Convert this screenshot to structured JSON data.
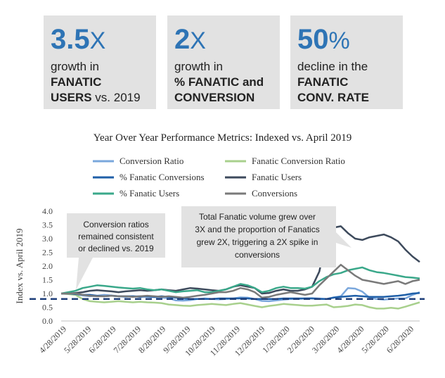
{
  "stats": [
    {
      "number": "3.5",
      "unit": "X",
      "line1": "growth in",
      "line2": "FANATIC",
      "line3a": "USERS",
      "line3b": " vs. 2019"
    },
    {
      "number": "2",
      "unit": "X",
      "line1": "growth in",
      "line2": "% FANATIC and",
      "line3a": "CONVERSION",
      "line3b": ""
    },
    {
      "number": "50",
      "unit": "%",
      "line1": "decline in the",
      "line2": "FANATIC",
      "line3a": "CONV. RATE",
      "line3b": ""
    }
  ],
  "chart_data": {
    "type": "line",
    "title": "Year Over Year Performance Metrics: Indexed vs. April 2019",
    "ylabel": "Index vs. April 2019",
    "xlabel": "",
    "ylim": [
      0,
      4
    ],
    "yticks": [
      "0.0",
      "0.5",
      "1.0",
      "1.5",
      "2.0",
      "2.5",
      "3.0",
      "3.5",
      "4.0"
    ],
    "xtick_labels": [
      "4/28/2019",
      "5/28/2019",
      "6/28/2019",
      "7/28/2019",
      "8/28/2019",
      "9/28/2019",
      "10/28/2019",
      "11/28/2019",
      "12/28/2019",
      "1/28/2020",
      "2/28/2020",
      "3/28/2020",
      "4/28/2020",
      "5/28/2020",
      "6/28/2020"
    ],
    "reference_line": 0.8,
    "series": [
      {
        "name": "Conversion Ratio",
        "color": "#7aa7dc",
        "values": [
          1.0,
          1.0,
          0.97,
          0.93,
          0.9,
          0.92,
          0.95,
          0.93,
          0.9,
          0.88,
          0.9,
          0.9,
          0.88,
          0.87,
          0.85,
          0.83,
          0.75,
          0.74,
          0.76,
          0.8,
          0.82,
          0.8,
          0.79,
          0.8,
          0.82,
          0.86,
          0.85,
          0.8,
          0.73,
          0.72,
          0.75,
          0.78,
          0.8,
          0.8,
          0.82,
          0.83,
          0.82,
          0.8,
          0.86,
          0.9,
          1.2,
          1.18,
          1.07,
          0.85,
          0.8,
          0.78,
          0.8,
          0.82,
          0.82,
          0.95,
          1.05
        ]
      },
      {
        "name": "Fanatic Conversion Ratio",
        "color": "#a8d08d",
        "values": [
          1.0,
          0.98,
          0.95,
          0.8,
          0.72,
          0.7,
          0.68,
          0.7,
          0.72,
          0.7,
          0.68,
          0.7,
          0.68,
          0.67,
          0.65,
          0.6,
          0.58,
          0.56,
          0.55,
          0.58,
          0.6,
          0.62,
          0.6,
          0.58,
          0.62,
          0.65,
          0.6,
          0.55,
          0.5,
          0.55,
          0.58,
          0.62,
          0.6,
          0.58,
          0.56,
          0.56,
          0.58,
          0.6,
          0.5,
          0.52,
          0.55,
          0.6,
          0.58,
          0.5,
          0.45,
          0.45,
          0.48,
          0.45,
          0.52,
          0.6,
          0.68
        ]
      },
      {
        "name": "% Fanatic Conversions",
        "color": "#1f5fa8",
        "values": [
          1.0,
          1.0,
          0.98,
          0.95,
          0.95,
          0.92,
          0.9,
          0.92,
          0.9,
          0.9,
          0.9,
          0.88,
          0.9,
          0.88,
          0.9,
          0.88,
          0.85,
          0.82,
          0.8,
          0.8,
          0.8,
          0.8,
          0.82,
          0.82,
          0.82,
          0.82,
          0.82,
          0.8,
          0.8,
          0.8,
          0.8,
          0.82,
          0.82,
          0.82,
          0.82,
          0.82,
          0.8,
          0.8,
          0.85,
          0.88,
          0.9,
          0.92,
          0.9,
          0.88,
          0.88,
          0.88,
          0.9,
          0.92,
          0.95,
          1.0,
          1.02
        ]
      },
      {
        "name": "Fanatic Users",
        "color": "#3d4a5c",
        "values": [
          1.0,
          1.0,
          1.02,
          1.05,
          1.1,
          1.12,
          1.1,
          1.08,
          1.05,
          1.08,
          1.1,
          1.12,
          1.1,
          1.12,
          1.15,
          1.12,
          1.1,
          1.15,
          1.2,
          1.18,
          1.15,
          1.12,
          1.1,
          1.15,
          1.25,
          1.3,
          1.25,
          1.2,
          1.0,
          1.02,
          1.1,
          1.15,
          1.1,
          1.1,
          1.15,
          1.25,
          1.8,
          3.0,
          3.4,
          3.45,
          3.2,
          3.0,
          2.95,
          3.05,
          3.1,
          3.15,
          3.05,
          2.9,
          2.6,
          2.35,
          2.15
        ]
      },
      {
        "name": "% Fanatic Users",
        "color": "#3aa88a",
        "values": [
          1.0,
          1.05,
          1.1,
          1.2,
          1.25,
          1.3,
          1.28,
          1.25,
          1.22,
          1.2,
          1.18,
          1.2,
          1.15,
          1.12,
          1.15,
          1.1,
          1.05,
          1.08,
          1.1,
          1.12,
          1.05,
          1.05,
          1.1,
          1.15,
          1.25,
          1.35,
          1.3,
          1.2,
          1.05,
          1.1,
          1.2,
          1.25,
          1.2,
          1.2,
          1.18,
          1.25,
          1.45,
          1.6,
          1.7,
          1.75,
          1.85,
          1.9,
          1.95,
          1.85,
          1.78,
          1.75,
          1.7,
          1.65,
          1.6,
          1.58,
          1.55
        ]
      },
      {
        "name": "Conversions",
        "color": "#7a7a7a",
        "values": [
          1.0,
          1.0,
          1.0,
          0.95,
          0.92,
          0.9,
          0.9,
          0.92,
          0.9,
          0.9,
          0.88,
          0.9,
          0.92,
          0.9,
          0.88,
          0.9,
          0.88,
          0.85,
          0.88,
          0.92,
          0.95,
          1.0,
          1.05,
          1.05,
          1.1,
          1.2,
          1.15,
          1.05,
          0.85,
          0.88,
          0.95,
          1.0,
          1.05,
          1.0,
          0.95,
          1.0,
          1.3,
          1.55,
          1.8,
          2.05,
          1.85,
          1.65,
          1.5,
          1.45,
          1.4,
          1.35,
          1.4,
          1.45,
          1.35,
          1.45,
          1.5
        ]
      }
    ],
    "annotations": [
      {
        "lines": [
          "Conversion ratios",
          "remained consistent",
          "or declined vs. 2019"
        ]
      },
      {
        "lines": [
          "Total Fanatic volume grew over",
          "3X and the proportion of Fanatics",
          "grew 2X, triggering a 2X spike in",
          "conversions"
        ]
      }
    ]
  }
}
